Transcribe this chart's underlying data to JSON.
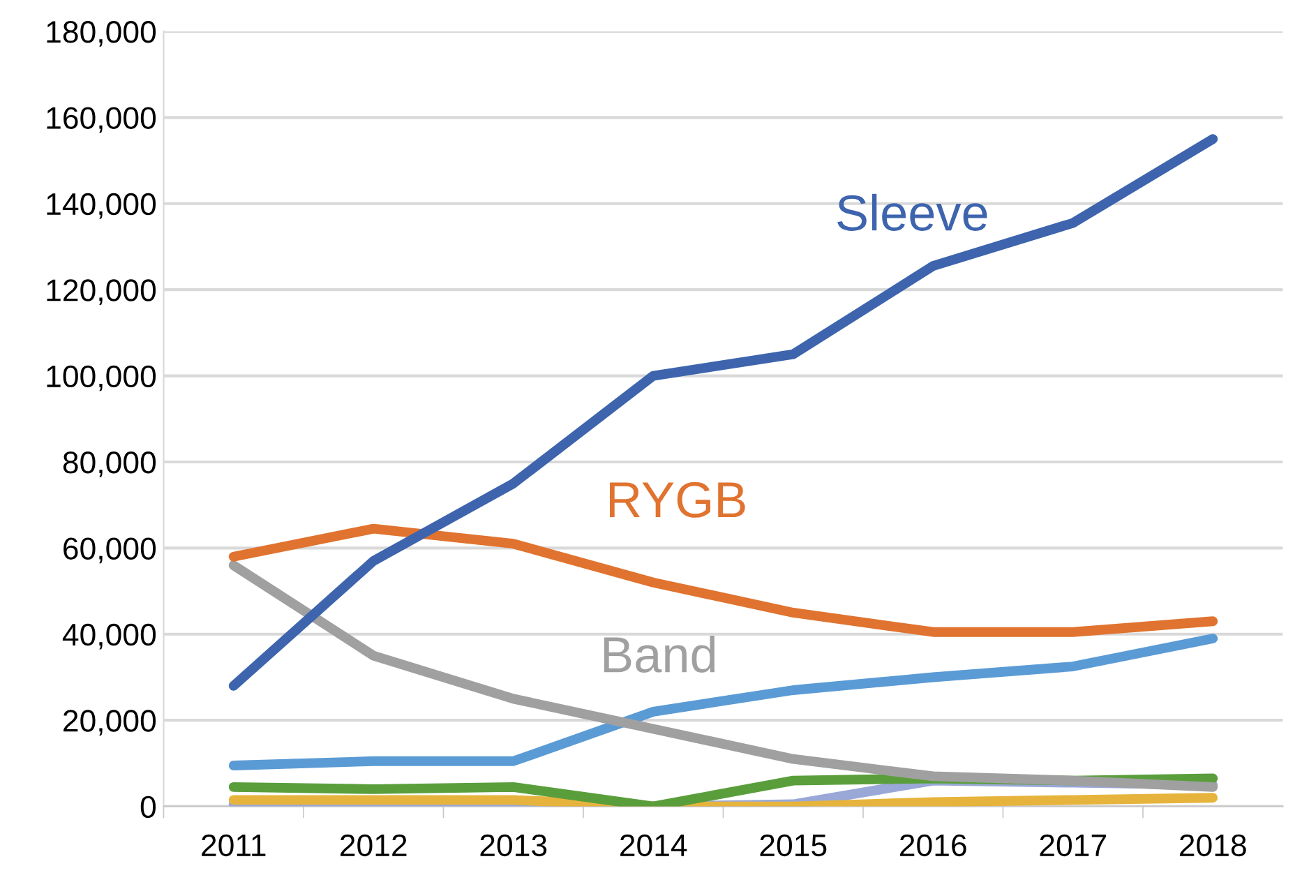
{
  "chart_data": {
    "type": "line",
    "categories": [
      "2011",
      "2012",
      "2013",
      "2014",
      "2015",
      "2016",
      "2017",
      "2018"
    ],
    "series": [
      {
        "name": "Sleeve",
        "color": "#3d64ad",
        "values": [
          28000,
          57000,
          75000,
          100000,
          105000,
          125500,
          135500,
          155000
        ]
      },
      {
        "name": "RYGB",
        "color": "#e0732f",
        "values": [
          58000,
          64500,
          61000,
          52000,
          45000,
          40500,
          40500,
          43000
        ]
      },
      {
        "name": "Band",
        "color": "#a0a0a0",
        "values": [
          56000,
          35000,
          25000,
          18000,
          11000,
          7000,
          6000,
          4500
        ]
      },
      {
        "color": "#5b9bd5",
        "values": [
          9500,
          10500,
          10500,
          22000,
          27000,
          30000,
          32500,
          39000
        ]
      },
      {
        "color": "#5a9e3c",
        "values": [
          4500,
          4000,
          4500,
          0,
          6000,
          6500,
          6000,
          6500
        ]
      },
      {
        "color": "#e6b43c",
        "values": [
          1500,
          1500,
          1500,
          0,
          0,
          1000,
          1500,
          2000
        ]
      },
      {
        "color": "#9aa8d8",
        "values": [
          500,
          500,
          500,
          0,
          500,
          6000,
          5500,
          5000
        ]
      }
    ],
    "ylim": [
      0,
      180000
    ],
    "yticks": [
      {
        "value": 0,
        "label": "0"
      },
      {
        "value": 20000,
        "label": "20,000"
      },
      {
        "value": 40000,
        "label": "40,000"
      },
      {
        "value": 60000,
        "label": "60,000"
      },
      {
        "value": 80000,
        "label": "80,000"
      },
      {
        "value": 100000,
        "label": "100,000"
      },
      {
        "value": 120000,
        "label": "120,000"
      },
      {
        "value": 140000,
        "label": "140,000"
      },
      {
        "value": 160000,
        "label": "160,000"
      },
      {
        "value": 180000,
        "label": "180,000"
      }
    ],
    "grid": "y",
    "legend": false,
    "marker": "none",
    "line_style": "solid"
  }
}
